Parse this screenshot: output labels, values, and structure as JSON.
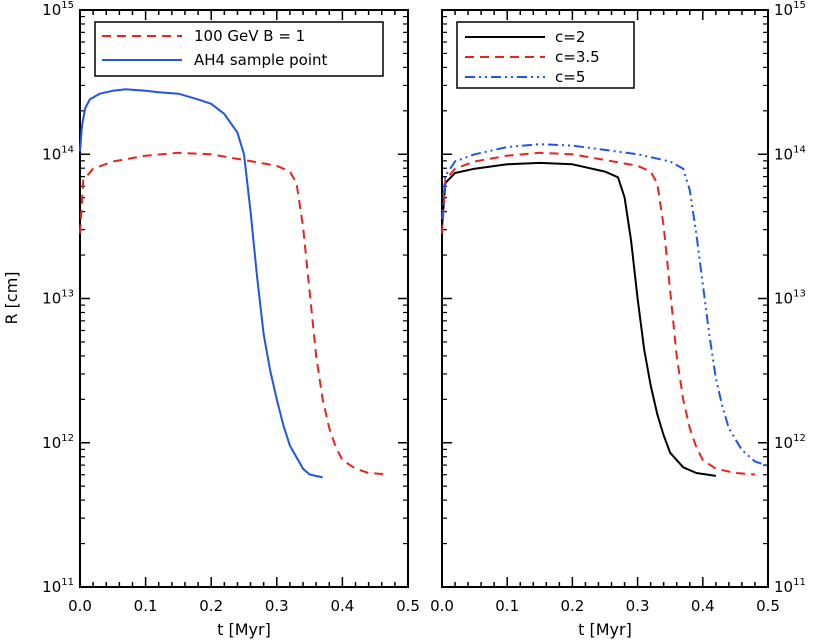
{
  "chart_data": [
    {
      "type": "line",
      "panel": "left",
      "xlabel": "t [Myr]",
      "ylabel": "R [cm]",
      "xlim": [
        0.0,
        0.5
      ],
      "ylim_log10": [
        11,
        15
      ],
      "y_scale": "log",
      "x_ticks": [
        "0.0",
        "0.1",
        "0.2",
        "0.3",
        "0.4",
        "0.5"
      ],
      "y_ticks": [
        {
          "base": "10",
          "exp": "11"
        },
        {
          "base": "10",
          "exp": "12"
        },
        {
          "base": "10",
          "exp": "13"
        },
        {
          "base": "10",
          "exp": "14"
        },
        {
          "base": "10",
          "exp": "15"
        }
      ],
      "legend_position": "top-left",
      "series": [
        {
          "name": "100 GeV B = 1",
          "color": "#e8231e",
          "style": "dashed",
          "x": [
            0.0,
            0.005,
            0.02,
            0.05,
            0.1,
            0.15,
            0.2,
            0.25,
            0.3,
            0.32,
            0.33,
            0.34,
            0.35,
            0.36,
            0.37,
            0.38,
            0.39,
            0.4,
            0.42,
            0.44,
            0.47
          ],
          "log10_r": [
            13.45,
            13.82,
            13.9,
            13.95,
            13.99,
            14.01,
            14.0,
            13.96,
            13.92,
            13.88,
            13.8,
            13.5,
            13.05,
            12.6,
            12.3,
            12.1,
            11.97,
            11.88,
            11.82,
            11.79,
            11.78
          ]
        },
        {
          "name": "AH4 sample point",
          "color": "#1f55e8",
          "style": "solid",
          "x": [
            0.0,
            0.003,
            0.008,
            0.015,
            0.03,
            0.05,
            0.07,
            0.1,
            0.12,
            0.15,
            0.18,
            0.2,
            0.22,
            0.24,
            0.25,
            0.26,
            0.27,
            0.28,
            0.29,
            0.3,
            0.31,
            0.32,
            0.33,
            0.34,
            0.35,
            0.37
          ],
          "log10_r": [
            14.02,
            14.2,
            14.32,
            14.38,
            14.42,
            14.44,
            14.45,
            14.44,
            14.43,
            14.42,
            14.38,
            14.35,
            14.28,
            14.15,
            14.0,
            13.6,
            13.15,
            12.75,
            12.5,
            12.3,
            12.12,
            11.98,
            11.9,
            11.82,
            11.78,
            11.76
          ]
        }
      ]
    },
    {
      "type": "line",
      "panel": "right",
      "xlabel": "t [Myr]",
      "ylabel": "",
      "xlim": [
        0.0,
        0.5
      ],
      "ylim_log10": [
        11,
        15
      ],
      "y_scale": "log",
      "x_ticks": [
        "0.0",
        "0.1",
        "0.2",
        "0.3",
        "0.4",
        "0.5"
      ],
      "y_ticks": [
        {
          "base": "10",
          "exp": "11"
        },
        {
          "base": "10",
          "exp": "12"
        },
        {
          "base": "10",
          "exp": "13"
        },
        {
          "base": "10",
          "exp": "14"
        },
        {
          "base": "10",
          "exp": "15"
        }
      ],
      "legend_position": "top-left",
      "series": [
        {
          "name": "c=2",
          "color": "#000000",
          "style": "solid",
          "x": [
            0.0,
            0.005,
            0.02,
            0.05,
            0.1,
            0.15,
            0.2,
            0.25,
            0.27,
            0.28,
            0.29,
            0.3,
            0.31,
            0.32,
            0.33,
            0.34,
            0.35,
            0.37,
            0.39,
            0.42
          ],
          "log10_r": [
            13.5,
            13.8,
            13.87,
            13.9,
            13.93,
            13.94,
            13.93,
            13.88,
            13.84,
            13.7,
            13.4,
            13.0,
            12.65,
            12.4,
            12.2,
            12.05,
            11.93,
            11.83,
            11.79,
            11.77
          ]
        },
        {
          "name": "c=3.5",
          "color": "#e8231e",
          "style": "dashed",
          "x": [
            0.0,
            0.005,
            0.02,
            0.05,
            0.1,
            0.15,
            0.2,
            0.25,
            0.3,
            0.32,
            0.33,
            0.34,
            0.35,
            0.36,
            0.37,
            0.38,
            0.39,
            0.4,
            0.42,
            0.45,
            0.48
          ],
          "log10_r": [
            13.45,
            13.82,
            13.9,
            13.95,
            13.99,
            14.01,
            14.0,
            13.96,
            13.92,
            13.88,
            13.8,
            13.5,
            13.05,
            12.6,
            12.3,
            12.1,
            11.97,
            11.88,
            11.82,
            11.79,
            11.78
          ]
        },
        {
          "name": "c=5",
          "color": "#1f55e8",
          "style": "dashdotdot",
          "x": [
            0.0,
            0.005,
            0.02,
            0.05,
            0.1,
            0.15,
            0.2,
            0.25,
            0.3,
            0.35,
            0.37,
            0.38,
            0.39,
            0.4,
            0.41,
            0.42,
            0.43,
            0.44,
            0.46,
            0.48,
            0.5
          ],
          "log10_r": [
            13.55,
            13.85,
            13.95,
            14.0,
            14.05,
            14.07,
            14.06,
            14.03,
            14.0,
            13.95,
            13.9,
            13.75,
            13.45,
            13.1,
            12.75,
            12.45,
            12.25,
            12.1,
            11.95,
            11.87,
            11.84
          ]
        }
      ]
    }
  ]
}
